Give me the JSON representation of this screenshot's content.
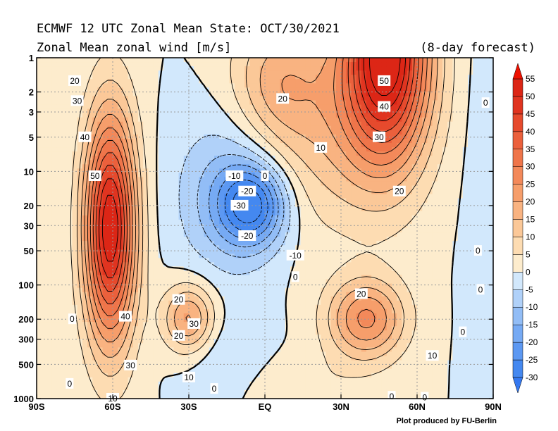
{
  "chart_data": {
    "type": "contour",
    "title": "ECMWF 12 UTC Zonal Mean State: OCT/30/2021",
    "subtitle": "Zonal Mean zonal wind [m/s]",
    "forecast_note": "(8-day forecast)",
    "credit": "Plot produced by FU-Berlin",
    "x_axis": {
      "scale": "linear",
      "range": [
        -90,
        90
      ],
      "ticks": [
        -90,
        -60,
        -30,
        0,
        30,
        60,
        90
      ],
      "tick_labels": [
        "90S",
        "60S",
        "30S",
        "EQ",
        "30N",
        "60N",
        "90N"
      ]
    },
    "y_axis": {
      "scale": "log",
      "range": [
        1000,
        1
      ],
      "ticks": [
        1,
        2,
        3,
        5,
        10,
        20,
        30,
        50,
        100,
        200,
        300,
        500,
        1000
      ],
      "tick_labels": [
        "1",
        "2",
        "3",
        "5",
        "10",
        "20",
        "30",
        "50",
        "100",
        "200",
        "300",
        "500",
        "1000"
      ]
    },
    "grid": true,
    "colorbar": {
      "levels": [
        -30,
        -25,
        -20,
        -15,
        -10,
        -5,
        0,
        5,
        10,
        15,
        20,
        25,
        30,
        35,
        40,
        45,
        50,
        55
      ],
      "labels": [
        "-30",
        "-25",
        "-20",
        "-15",
        "-10",
        "-5",
        "0",
        "5",
        "10",
        "15",
        "20",
        "25",
        "30",
        "35",
        "40",
        "45",
        "50",
        "55"
      ],
      "colors": [
        "#4488f0",
        "#5c98f2",
        "#76aaf4",
        "#92bdf6",
        "#b0d1f9",
        "#d2e8fc",
        "#fdeccd",
        "#fddcb2",
        "#fbc898",
        "#f9b381",
        "#f69e6b",
        "#f3895a",
        "#ef754a",
        "#eb603c",
        "#e64a2d",
        "#e03420",
        "#dc2616"
      ],
      "extend": "both"
    },
    "contour_interval": 5,
    "features": [
      {
        "kind": "westerly-jet",
        "lat": -61,
        "p": 30,
        "max": 55
      },
      {
        "kind": "westerly-jet",
        "lat": -30,
        "p": 200,
        "max": 30
      },
      {
        "kind": "westerly-jet",
        "lat": 40,
        "p": 200,
        "max": 25
      },
      {
        "kind": "westerly-jet",
        "lat": 45,
        "p": 1,
        "max": 55
      },
      {
        "kind": "easterly-core",
        "lat": -5,
        "p": 20,
        "min": -33
      }
    ],
    "contour_labels": [
      {
        "text": "20",
        "lat": -75,
        "p": 1.6
      },
      {
        "text": "30",
        "lat": -74,
        "p": 2.4
      },
      {
        "text": "40",
        "lat": -71,
        "p": 5
      },
      {
        "text": "50",
        "lat": -67,
        "p": 11
      },
      {
        "text": "20",
        "lat": -34,
        "p": 135
      },
      {
        "text": "30",
        "lat": -28,
        "p": 220
      },
      {
        "text": "40",
        "lat": -55,
        "p": 190
      },
      {
        "text": "20",
        "lat": -34,
        "p": 280
      },
      {
        "text": "30",
        "lat": -53,
        "p": 510
      },
      {
        "text": "10",
        "lat": -30,
        "p": 650
      },
      {
        "text": "0",
        "lat": -20,
        "p": 820
      },
      {
        "text": "0",
        "lat": -76,
        "p": 200
      },
      {
        "text": "0",
        "lat": -77,
        "p": 740
      },
      {
        "text": "10",
        "lat": -60,
        "p": 1000
      },
      {
        "text": "-10",
        "lat": -12,
        "p": 11
      },
      {
        "text": "0",
        "lat": 0,
        "p": 11
      },
      {
        "text": "-20",
        "lat": -7,
        "p": 15
      },
      {
        "text": "-30",
        "lat": -10,
        "p": 20
      },
      {
        "text": "-20",
        "lat": -7,
        "p": 37
      },
      {
        "text": "-10",
        "lat": 12,
        "p": 55
      },
      {
        "text": "0",
        "lat": 12,
        "p": 85
      },
      {
        "text": "20",
        "lat": 7,
        "p": 2.3
      },
      {
        "text": "10",
        "lat": 22,
        "p": 6.2
      },
      {
        "text": "50",
        "lat": 47,
        "p": 1.6
      },
      {
        "text": "40",
        "lat": 47,
        "p": 2.7
      },
      {
        "text": "30",
        "lat": 45,
        "p": 5
      },
      {
        "text": "20",
        "lat": 53,
        "p": 15
      },
      {
        "text": "20",
        "lat": 38,
        "p": 120
      },
      {
        "text": "10",
        "lat": 66,
        "p": 420
      },
      {
        "text": "0",
        "lat": 78,
        "p": 260
      },
      {
        "text": "0",
        "lat": 84,
        "p": 50
      },
      {
        "text": "0",
        "lat": 85,
        "p": 110
      },
      {
        "text": "0",
        "lat": 87,
        "p": 2.5
      },
      {
        "text": "0",
        "lat": 50,
        "p": 960
      },
      {
        "text": "0",
        "lat": 63,
        "p": 980
      }
    ]
  }
}
